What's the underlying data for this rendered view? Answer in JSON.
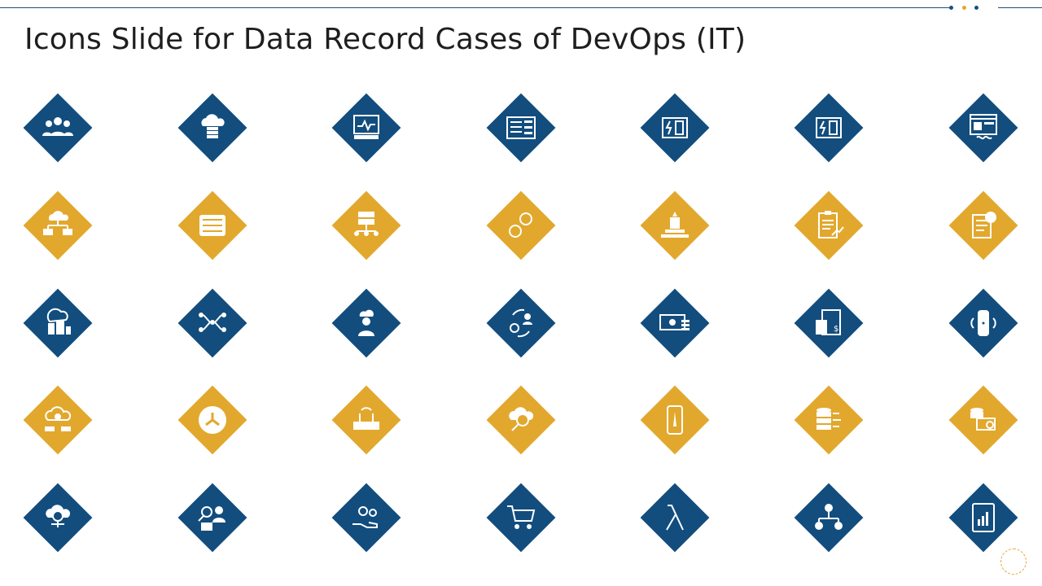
{
  "slide": {
    "title": "Icons Slide for Data Record Cases of DevOps (IT)"
  },
  "colors": {
    "navy": "#124d7e",
    "gold": "#e2a82d",
    "icon": "#ffffff"
  },
  "icons": [
    "users-group-icon",
    "cloud-server-icon",
    "monitor-pulse-icon",
    "server-sliders-icon",
    "electric-box-icon",
    "electric-box-icon-2",
    "web-design-icon",
    "cloud-network-icon",
    "server-rack-icon",
    "server-network-icon",
    "gears-icon",
    "monument-icon",
    "clipboard-chart-icon",
    "invoice-dollar-icon",
    "brain-city-icon",
    "team-network-icon",
    "chef-icon",
    "gear-user-cycle-icon",
    "cash-icon",
    "calculator-document-icon",
    "smart-speaker-icon",
    "cloud-gear-icon",
    "circle-arrows-icon",
    "router-icon",
    "cloud-question-icon",
    "mobile-road-icon",
    "database-network-icon",
    "database-search-icon",
    "cloud-security-icon",
    "user-search-icon",
    "hand-gears-icon",
    "shopping-cart-icon",
    "lambda-icon",
    "dollar-gear-network-icon",
    "tablet-chart-icon"
  ]
}
